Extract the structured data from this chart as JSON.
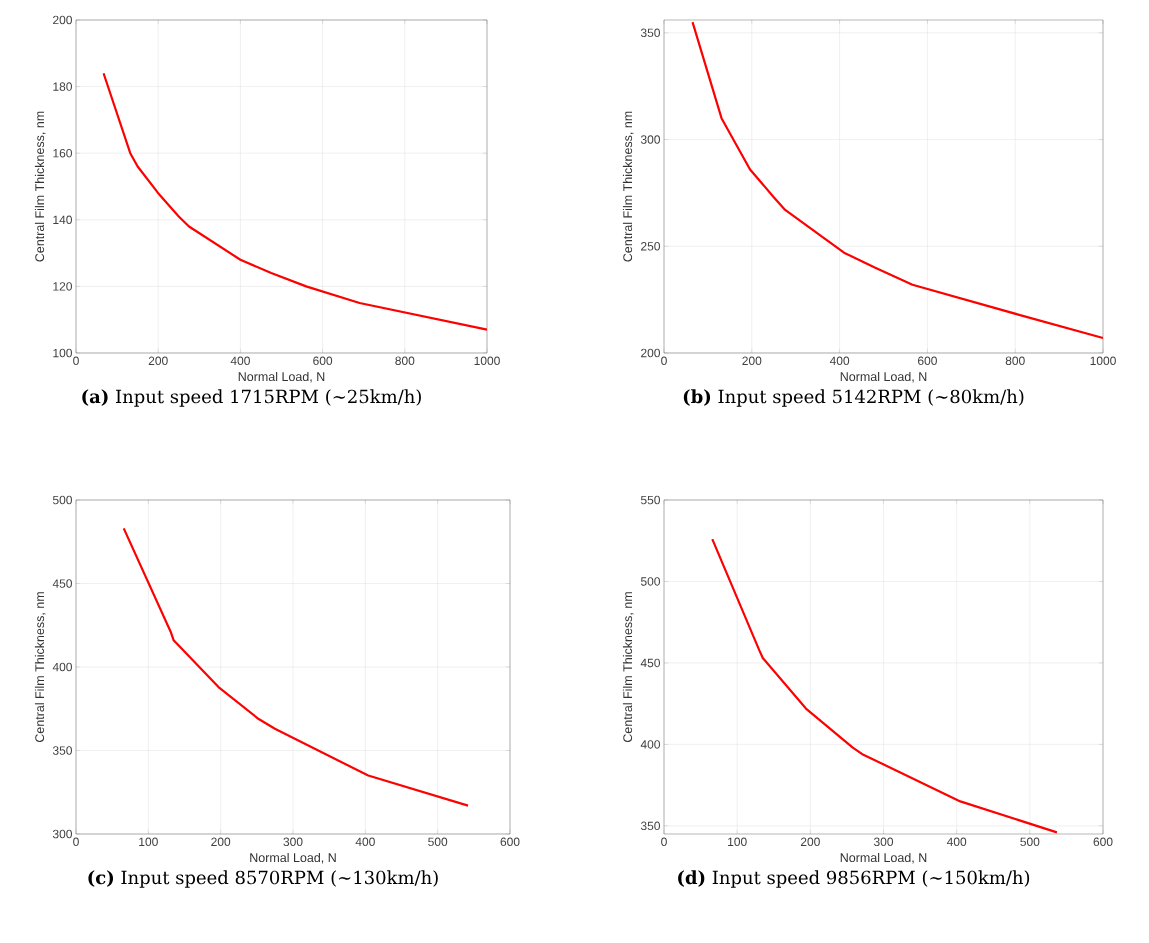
{
  "chart_data": [
    {
      "type": "line",
      "title": "**(a)** Input speed 1715RPM (∼25km/h)",
      "xlabel": "Normal Load, N",
      "ylabel": "Central Film Thickness, nm",
      "x": [
        67,
        132,
        150,
        200,
        250,
        275,
        400,
        475,
        560,
        690,
        1000
      ],
      "series": [
        {
          "color": "#ff0000",
          "values": [
            184,
            160,
            156,
            148,
            141,
            138,
            128,
            124,
            120,
            115,
            107
          ]
        }
      ],
      "xlim": [
        0,
        1000
      ],
      "ylim": [
        100,
        200
      ],
      "xticks": [
        0,
        200,
        400,
        600,
        800,
        1000
      ],
      "yticks": [
        100,
        120,
        140,
        160,
        180,
        200
      ],
      "grid": true
    },
    {
      "type": "line",
      "title": "**(b)** Input speed 5142RPM (∼80km/h)",
      "xlabel": "Normal Load, N",
      "ylabel": "Central Film Thickness, nm",
      "x": [
        65,
        131,
        196,
        250,
        276,
        410,
        480,
        566,
        807,
        1000
      ],
      "series": [
        {
          "color": "#ff0000",
          "values": [
            355,
            310,
            286,
            273,
            267,
            247,
            240,
            232,
            218,
            207
          ]
        }
      ],
      "xlim": [
        0,
        1000
      ],
      "ylim": [
        200,
        356
      ],
      "xticks": [
        0,
        200,
        400,
        600,
        800,
        1000
      ],
      "yticks": [
        200,
        250,
        300,
        350
      ],
      "grid": true
    },
    {
      "type": "line",
      "title": "**(c)** Input speed 8570RPM (∼130km/h)",
      "xlabel": "Normal Load, N",
      "ylabel": "Central Film Thickness, nm",
      "x": [
        66,
        131,
        135,
        197,
        252,
        275,
        404,
        542
      ],
      "series": [
        {
          "color": "#ff0000",
          "values": [
            483,
            421,
            416,
            388,
            369,
            363,
            335,
            317
          ]
        }
      ],
      "xlim": [
        0,
        600
      ],
      "ylim": [
        300,
        500
      ],
      "xticks": [
        0,
        100,
        200,
        300,
        400,
        500,
        600
      ],
      "yticks": [
        300,
        350,
        400,
        450,
        500
      ],
      "grid": true
    },
    {
      "type": "line",
      "title": "**(d)** Input speed 9856RPM (∼150km/h)",
      "xlabel": "Normal Load, N",
      "ylabel": "Central Film Thickness, nm",
      "x": [
        66,
        130,
        135,
        194,
        258,
        271,
        405,
        537
      ],
      "series": [
        {
          "color": "#ff0000",
          "values": [
            526,
            458,
            453,
            422,
            398,
            394,
            365,
            346
          ]
        }
      ],
      "xlim": [
        0,
        600
      ],
      "ylim": [
        345,
        550
      ],
      "xticks": [
        0,
        100,
        200,
        300,
        400,
        500,
        600
      ],
      "yticks": [
        350,
        400,
        450,
        500,
        550
      ],
      "grid": true
    }
  ]
}
